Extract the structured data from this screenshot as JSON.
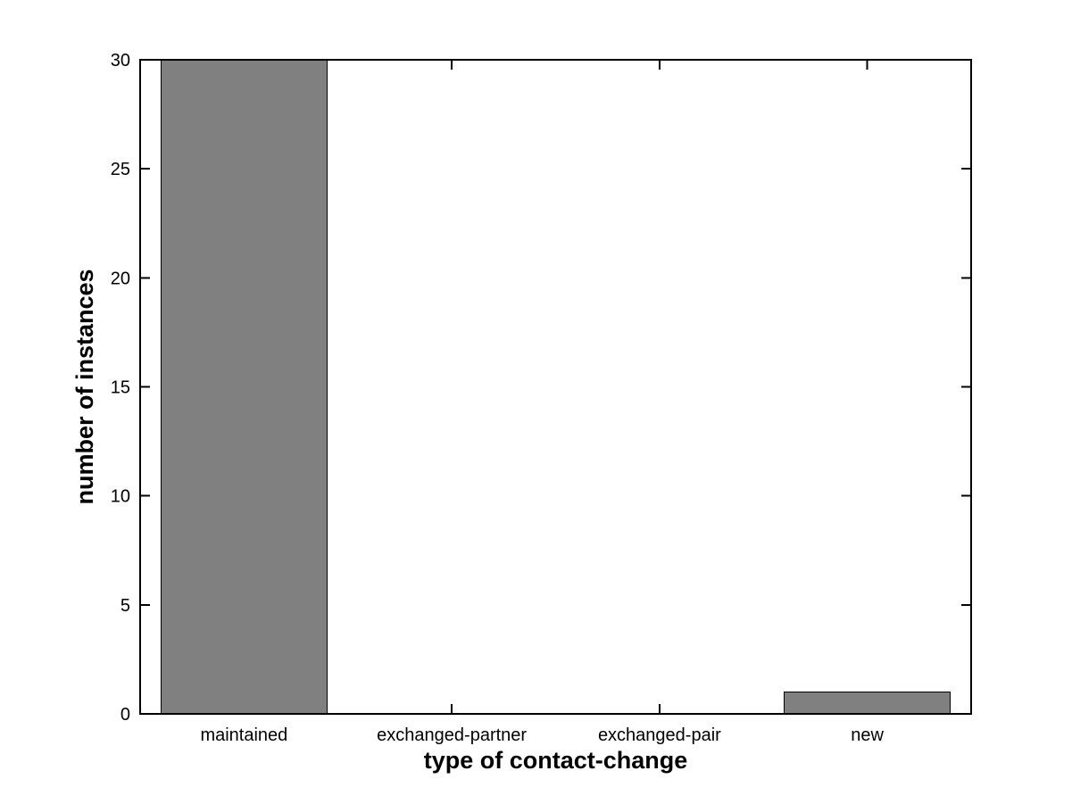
{
  "chart_data": {
    "type": "bar",
    "title": "",
    "xlabel": "type of contact-change",
    "ylabel": "number of instances",
    "categories": [
      "maintained",
      "exchanged-partner",
      "exchanged-pair",
      "new"
    ],
    "values": [
      30,
      0,
      0,
      1
    ],
    "ylim": [
      0,
      30
    ],
    "yticks": [
      0,
      5,
      10,
      15,
      20,
      25,
      30
    ],
    "ytick_labels": [
      "0",
      "5",
      "10",
      "15",
      "20",
      "25",
      "30"
    ],
    "bar_color": "#808080",
    "bar_edge_color": "#000000",
    "axis_color": "#000000",
    "text_color": "#000000",
    "background_color": "#ffffff",
    "bar_width_fraction": 0.8,
    "grid": false,
    "legend": "none",
    "tick_direction": "in",
    "box": true
  }
}
